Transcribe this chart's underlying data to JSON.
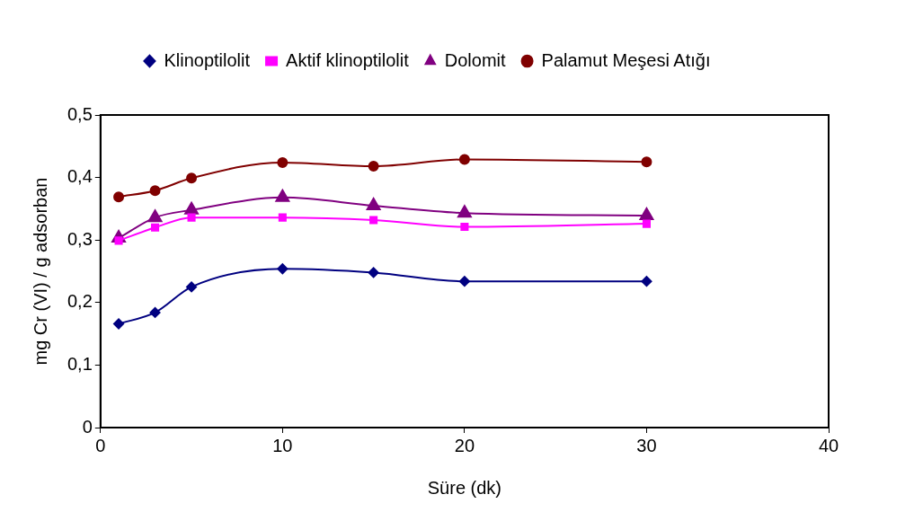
{
  "chart_data": {
    "type": "line",
    "xlabel": "Süre (dk)",
    "ylabel": "mg Cr (VI) / g adsorban",
    "x": [
      1,
      3,
      5,
      10,
      15,
      20,
      30
    ],
    "series": [
      {
        "name": "Klinoptilolit",
        "color": "#000080",
        "marker": "diamond",
        "values": [
          0.166,
          0.184,
          0.225,
          0.254,
          0.248,
          0.234,
          0.234
        ]
      },
      {
        "name": "Aktif klinoptilolit",
        "color": "#ff00ff",
        "marker": "square",
        "values": [
          0.299,
          0.32,
          0.336,
          0.336,
          0.332,
          0.321,
          0.326
        ]
      },
      {
        "name": "Dolomit",
        "color": "#800080",
        "marker": "triangle",
        "values": [
          0.303,
          0.336,
          0.348,
          0.368,
          0.355,
          0.343,
          0.339
        ]
      },
      {
        "name": "Palamut Meşesi Atığı",
        "color": "#800000",
        "marker": "circle",
        "values": [
          0.369,
          0.379,
          0.399,
          0.424,
          0.418,
          0.429,
          0.425
        ]
      }
    ],
    "xlim": [
      0,
      40
    ],
    "xticks": [
      0,
      10,
      20,
      30,
      40
    ],
    "ylim": [
      0,
      0.5
    ],
    "yticks": [
      {
        "value": 0,
        "label": "0"
      },
      {
        "value": 0.1,
        "label": "0,1"
      },
      {
        "value": 0.2,
        "label": "0,2"
      },
      {
        "value": 0.3,
        "label": "0,3"
      },
      {
        "value": 0.4,
        "label": "0,4"
      },
      {
        "value": 0.5,
        "label": "0,5"
      }
    ],
    "grid": false,
    "legend": "top",
    "line_style": "solid"
  }
}
